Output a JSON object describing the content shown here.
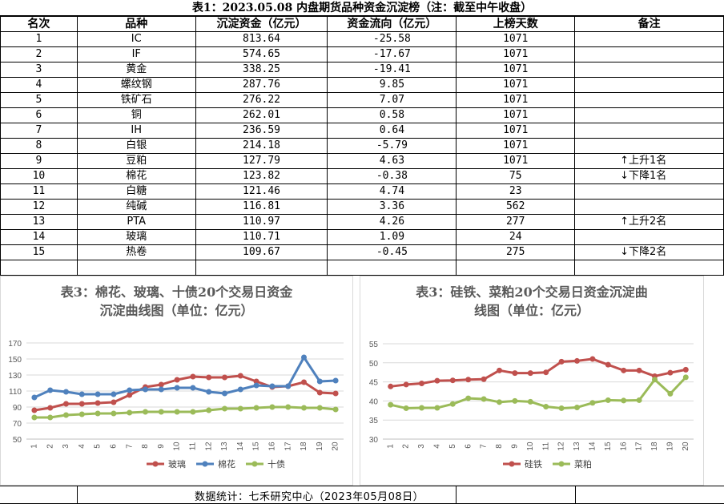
{
  "title": "表1：2023.05.08 内盘期货品种资金沉淀榜（注：截至中午收盘）",
  "table": {
    "headers": [
      "名次",
      "品种",
      "沉淀资金（亿元）",
      "资金流向（亿元）",
      "上榜天数",
      "备注"
    ],
    "rows": [
      [
        "1",
        "IC",
        "813.64",
        "-25.58",
        "1071",
        ""
      ],
      [
        "2",
        "IF",
        "574.65",
        "-17.67",
        "1071",
        ""
      ],
      [
        "3",
        "黄金",
        "338.25",
        "-19.41",
        "1071",
        ""
      ],
      [
        "4",
        "螺纹钢",
        "287.76",
        "9.85",
        "1071",
        ""
      ],
      [
        "5",
        "铁矿石",
        "276.22",
        "7.07",
        "1071",
        ""
      ],
      [
        "6",
        "铜",
        "262.01",
        "0.58",
        "1071",
        ""
      ],
      [
        "7",
        "IH",
        "236.59",
        "0.64",
        "1071",
        ""
      ],
      [
        "8",
        "白银",
        "214.18",
        "-5.79",
        "1071",
        ""
      ],
      [
        "9",
        "豆粕",
        "127.79",
        "4.63",
        "1071",
        "↑上升1名"
      ],
      [
        "10",
        "棉花",
        "123.82",
        "-0.38",
        "75",
        "↓下降1名"
      ],
      [
        "11",
        "白糖",
        "121.46",
        "4.74",
        "23",
        ""
      ],
      [
        "12",
        "纯碱",
        "116.81",
        "3.36",
        "562",
        ""
      ],
      [
        "13",
        "PTA",
        "110.97",
        "4.26",
        "277",
        "↑上升2名"
      ],
      [
        "14",
        "玻璃",
        "110.71",
        "1.09",
        "24",
        ""
      ],
      [
        "15",
        "热卷",
        "109.67",
        "-0.45",
        "275",
        "↓下降2名"
      ]
    ]
  },
  "footer": "数据统计：七禾研究中心（2023年05月08日）",
  "chart_data": [
    {
      "type": "line",
      "title": "表3：棉花、玻璃、十债20个交易日资金沉淀曲线图（单位：亿元）",
      "title_lines": [
        "表3：棉花、玻璃、十债20个交易日资金",
        "沉淀曲线图（单位：亿元）"
      ],
      "categories": [
        "1",
        "2",
        "3",
        "4",
        "5",
        "6",
        "7",
        "8",
        "9",
        "10",
        "11",
        "12",
        "13",
        "14",
        "15",
        "16",
        "17",
        "18",
        "19",
        "20"
      ],
      "ylim": [
        50,
        170
      ],
      "yticks": [
        50,
        70,
        90,
        110,
        130,
        150,
        170
      ],
      "grid": true,
      "legend": "bottom",
      "series": [
        {
          "name": "玻璃",
          "color": "#c0504d",
          "values": [
            86,
            89,
            94,
            94,
            95,
            96,
            105,
            115,
            118,
            124,
            128,
            127,
            127,
            129,
            122,
            115,
            116,
            121,
            108,
            107
          ]
        },
        {
          "name": "棉花",
          "color": "#4f81bd",
          "values": [
            102,
            111,
            109,
            106,
            106,
            106,
            111,
            112,
            112,
            114,
            114,
            109,
            107,
            112,
            117,
            116,
            116,
            152,
            122,
            123
          ]
        },
        {
          "name": "十债",
          "color": "#9bbb59",
          "values": [
            77,
            77,
            80,
            81,
            82,
            82,
            83,
            84,
            84,
            84,
            84,
            86,
            88,
            88,
            89,
            90,
            90,
            89,
            89,
            87
          ]
        }
      ]
    },
    {
      "type": "line",
      "title": "表3：硅铁、菜粕20个交易日资金沉淀曲线图（单位：亿元）",
      "title_lines": [
        "表3：硅铁、菜粕20个交易日资金沉淀曲",
        "线图（单位：亿元）"
      ],
      "categories": [
        "1",
        "2",
        "3",
        "4",
        "5",
        "6",
        "7",
        "8",
        "9",
        "10",
        "11",
        "12",
        "13",
        "14",
        "15",
        "16",
        "17",
        "18",
        "19",
        "20"
      ],
      "ylim": [
        30,
        55
      ],
      "yticks": [
        30,
        35,
        40,
        45,
        50,
        55
      ],
      "grid": true,
      "legend": "bottom",
      "series": [
        {
          "name": "硅铁",
          "color": "#c0504d",
          "values": [
            43.8,
            44.3,
            44.6,
            45.3,
            45.4,
            45.6,
            45.7,
            48.0,
            47.3,
            47.3,
            47.5,
            50.3,
            50.5,
            51.0,
            49.5,
            48.0,
            48.0,
            46.5,
            47.4,
            48.2
          ]
        },
        {
          "name": "菜粕",
          "color": "#9bbb59",
          "values": [
            39.0,
            38.1,
            38.2,
            38.2,
            39.2,
            40.7,
            40.5,
            39.7,
            40.0,
            39.8,
            38.5,
            38.1,
            38.3,
            39.5,
            40.2,
            40.1,
            40.2,
            45.6,
            41.9,
            46.2
          ]
        }
      ]
    }
  ]
}
